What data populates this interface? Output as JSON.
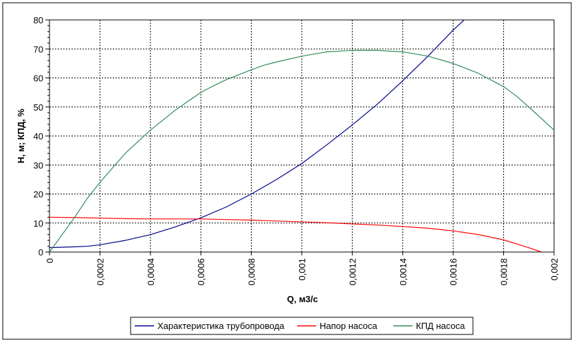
{
  "chart_data": {
    "type": "line",
    "xlabel": "Q, м3/с",
    "ylabel": "H, м; КПД, %",
    "xlim": [
      0,
      0.002
    ],
    "ylim": [
      0,
      80
    ],
    "x_ticks": [
      "0",
      "0,0002",
      "0,0004",
      "0,0006",
      "0,0008",
      "0,001",
      "0,0012",
      "0,0014",
      "0,0016",
      "0,0018",
      "0,002"
    ],
    "y_ticks": [
      "0",
      "10",
      "20",
      "30",
      "40",
      "50",
      "60",
      "70",
      "80"
    ],
    "grid": true,
    "legend_position": "bottom",
    "series": [
      {
        "name": "Характеристика трубопровода",
        "color": "#00008b",
        "x": [
          0,
          0.0001,
          0.00015,
          0.0002,
          0.0003,
          0.0004,
          0.0005,
          0.0006,
          0.0007,
          0.0008,
          0.0009,
          0.001,
          0.0011,
          0.0012,
          0.0013,
          0.0014,
          0.0015,
          0.0016,
          0.00165
        ],
        "y": [
          1.5,
          1.8,
          2.0,
          2.5,
          4.0,
          6.0,
          8.7,
          11.8,
          15.5,
          20.0,
          25.0,
          30.5,
          37.0,
          43.8,
          51.0,
          59.0,
          67.5,
          76.5,
          80.5
        ]
      },
      {
        "name": "Напор насоса",
        "color": "#ff0000",
        "x": [
          0,
          0.0001,
          0.0002,
          0.0003,
          0.0004,
          0.0005,
          0.0006,
          0.0007,
          0.0008,
          0.0009,
          0.001,
          0.0011,
          0.0012,
          0.0013,
          0.0014,
          0.0015,
          0.0016,
          0.0017,
          0.0018,
          0.0019,
          0.00195
        ],
        "y": [
          12.0,
          11.9,
          11.7,
          11.5,
          11.4,
          11.4,
          11.4,
          11.2,
          11.0,
          10.7,
          10.4,
          10.1,
          9.7,
          9.3,
          8.8,
          8.2,
          7.3,
          6.0,
          4.2,
          1.5,
          0
        ]
      },
      {
        "name": "КПД насоса",
        "color": "#2e8b57",
        "x": [
          0,
          0.0001,
          0.00015,
          0.0002,
          0.0003,
          0.0004,
          0.0005,
          0.0006,
          0.00065,
          0.0007,
          0.0008,
          0.00085,
          0.0009,
          0.001,
          0.0011,
          0.0012,
          0.0013,
          0.0014,
          0.0015,
          0.0016,
          0.0017,
          0.0018,
          0.00185,
          0.0019,
          0.002
        ],
        "y": [
          0,
          12,
          18.5,
          24,
          34,
          42,
          49,
          55,
          57.3,
          59.4,
          62.8,
          64.4,
          65.5,
          67.5,
          69.0,
          69.5,
          69.5,
          69.0,
          67.5,
          65.0,
          61.6,
          57.0,
          53.8,
          50.0,
          42.0
        ]
      }
    ]
  }
}
